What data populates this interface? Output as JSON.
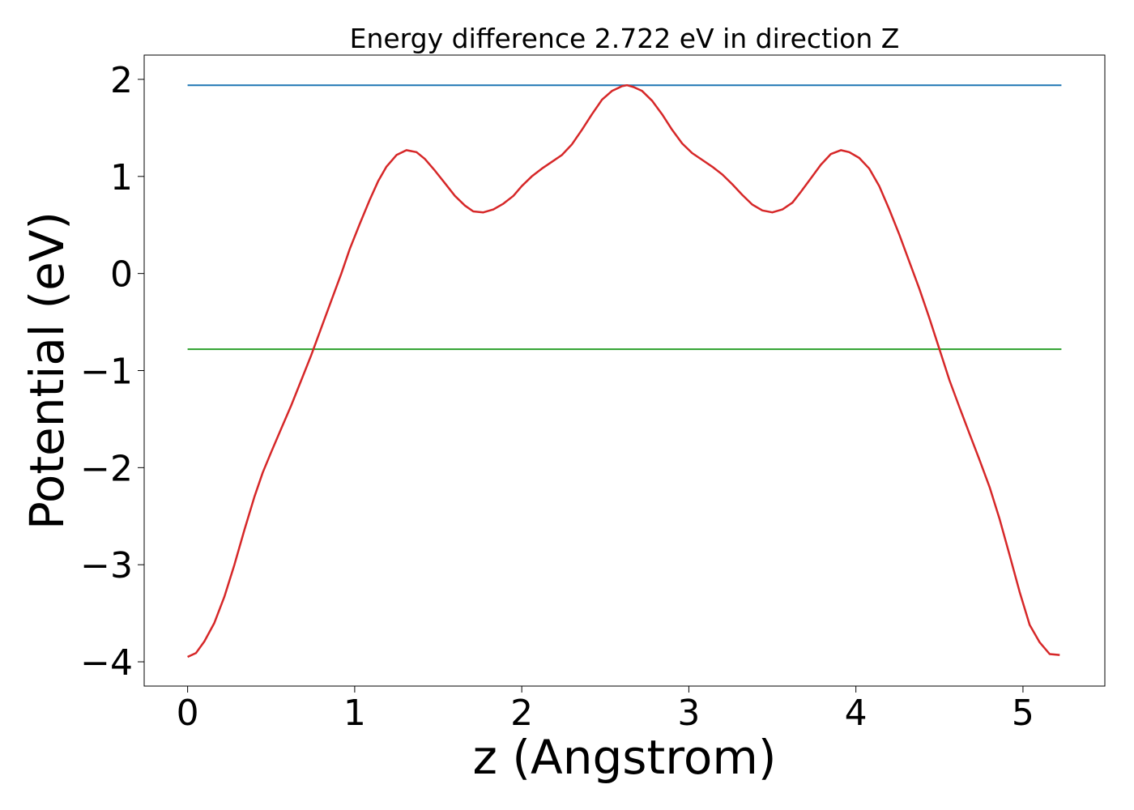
{
  "chart_data": {
    "type": "line",
    "title": "Energy difference 2.722 eV in direction Z",
    "xlabel": "z (Angstrom)",
    "ylabel": "Potential (eV)",
    "xlim": [
      -0.26,
      5.49
    ],
    "ylim": [
      -4.25,
      2.25
    ],
    "xticks": [
      0,
      1,
      2,
      3,
      4,
      5
    ],
    "xtick_labels": [
      "0",
      "1",
      "2",
      "3",
      "4",
      "5"
    ],
    "yticks": [
      -4,
      -3,
      -2,
      -1,
      0,
      1,
      2
    ],
    "ytick_labels": [
      "−4",
      "−3",
      "−2",
      "−1",
      "0",
      "1",
      "2"
    ],
    "grid": false,
    "legend": "none",
    "series": [
      {
        "color": "#1f77b4",
        "kind": "hline",
        "x": [
          0,
          5.23
        ],
        "y": [
          1.94,
          1.94
        ]
      },
      {
        "color": "#2ca02c",
        "kind": "hline",
        "x": [
          0,
          5.23
        ],
        "y": [
          -0.78,
          -0.78
        ]
      },
      {
        "color": "#d62728",
        "kind": "line",
        "x": [
          0,
          0.05,
          0.1,
          0.16,
          0.22,
          0.28,
          0.34,
          0.4,
          0.45,
          0.5,
          0.56,
          0.62,
          0.68,
          0.74,
          0.8,
          0.86,
          0.92,
          0.97,
          1.03,
          1.09,
          1.14,
          1.19,
          1.25,
          1.31,
          1.37,
          1.42,
          1.48,
          1.54,
          1.6,
          1.66,
          1.71,
          1.77,
          1.83,
          1.89,
          1.95,
          2.0,
          2.06,
          2.12,
          2.18,
          2.24,
          2.3,
          2.36,
          2.42,
          2.48,
          2.54,
          2.6,
          2.63,
          2.67,
          2.72,
          2.78,
          2.84,
          2.9,
          2.96,
          3.02,
          3.08,
          3.14,
          3.2,
          3.26,
          3.32,
          3.38,
          3.44,
          3.5,
          3.56,
          3.62,
          3.67,
          3.73,
          3.79,
          3.85,
          3.91,
          3.96,
          4.02,
          4.08,
          4.14,
          4.2,
          4.26,
          4.32,
          4.38,
          4.44,
          4.5,
          4.56,
          4.62,
          4.68,
          4.74,
          4.8,
          4.86,
          4.92,
          4.98,
          5.04,
          5.1,
          5.16,
          5.22
        ],
        "y": [
          -3.95,
          -3.91,
          -3.79,
          -3.6,
          -3.33,
          -3.0,
          -2.64,
          -2.3,
          -2.05,
          -1.84,
          -1.6,
          -1.36,
          -1.1,
          -0.84,
          -0.56,
          -0.28,
          0.0,
          0.25,
          0.51,
          0.76,
          0.95,
          1.1,
          1.22,
          1.27,
          1.25,
          1.18,
          1.06,
          0.93,
          0.8,
          0.7,
          0.64,
          0.63,
          0.66,
          0.72,
          0.8,
          0.9,
          1.0,
          1.08,
          1.15,
          1.22,
          1.33,
          1.48,
          1.64,
          1.79,
          1.88,
          1.93,
          1.94,
          1.92,
          1.88,
          1.78,
          1.64,
          1.48,
          1.34,
          1.24,
          1.17,
          1.1,
          1.02,
          0.92,
          0.81,
          0.71,
          0.65,
          0.63,
          0.66,
          0.73,
          0.84,
          0.98,
          1.12,
          1.23,
          1.27,
          1.25,
          1.19,
          1.08,
          0.9,
          0.66,
          0.4,
          0.12,
          -0.16,
          -0.46,
          -0.78,
          -1.1,
          -1.38,
          -1.65,
          -1.92,
          -2.2,
          -2.53,
          -2.9,
          -3.28,
          -3.62,
          -3.8,
          -3.92,
          -3.93
        ]
      }
    ]
  }
}
